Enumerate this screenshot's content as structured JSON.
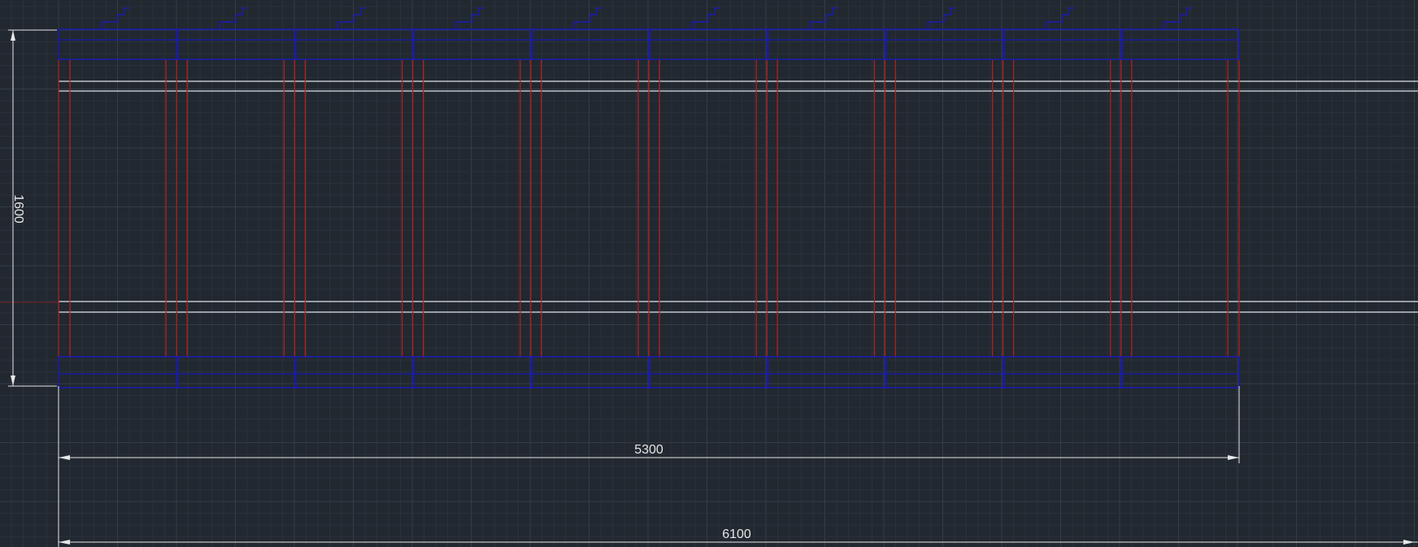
{
  "drawing": {
    "dimensions": {
      "vertical": "1600",
      "horizontal_inner": "5300",
      "horizontal_overall": "6100"
    },
    "panel_count": 10,
    "colors": {
      "background": "#212830",
      "grid_minor": "#2a313a",
      "grid_major": "#343c47",
      "panel_blue": "#1a1ab4",
      "stud_red": "#b41e1e",
      "rail_white": "#e0e2e6",
      "dimension_white": "#e6e6e6",
      "crosshair_red": "#7a2020"
    }
  }
}
